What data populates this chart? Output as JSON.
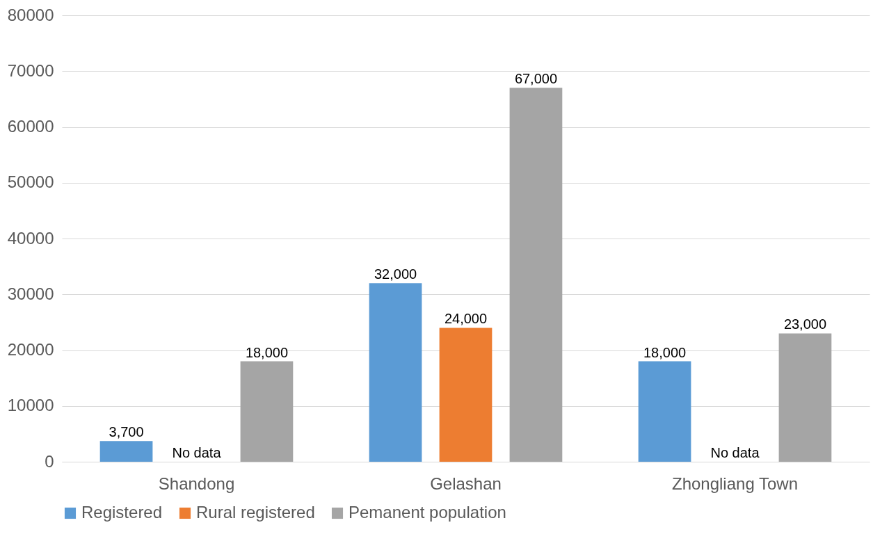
{
  "chart_data": {
    "type": "bar",
    "categories": [
      "Shandong",
      "Gelashan",
      "Zhongliang Town"
    ],
    "series": [
      {
        "name": "Registered",
        "color": "#5b9bd5",
        "values": [
          3700,
          32000,
          18000
        ],
        "value_labels": [
          "3,700",
          "32,000",
          "18,000"
        ]
      },
      {
        "name": "Rural registered",
        "color": "#ed7d31",
        "values": [
          null,
          24000,
          null
        ],
        "value_labels": [
          "No data",
          "24,000",
          "No data"
        ]
      },
      {
        "name": "Pemanent population",
        "color": "#a5a5a5",
        "values": [
          18000,
          67000,
          23000
        ],
        "value_labels": [
          "18,000",
          "67,000",
          "23,000"
        ]
      }
    ],
    "ylim": [
      0,
      80000
    ],
    "yticks": [
      0,
      10000,
      20000,
      30000,
      40000,
      50000,
      60000,
      70000,
      80000
    ],
    "grid": "y",
    "legend": "bottom"
  }
}
